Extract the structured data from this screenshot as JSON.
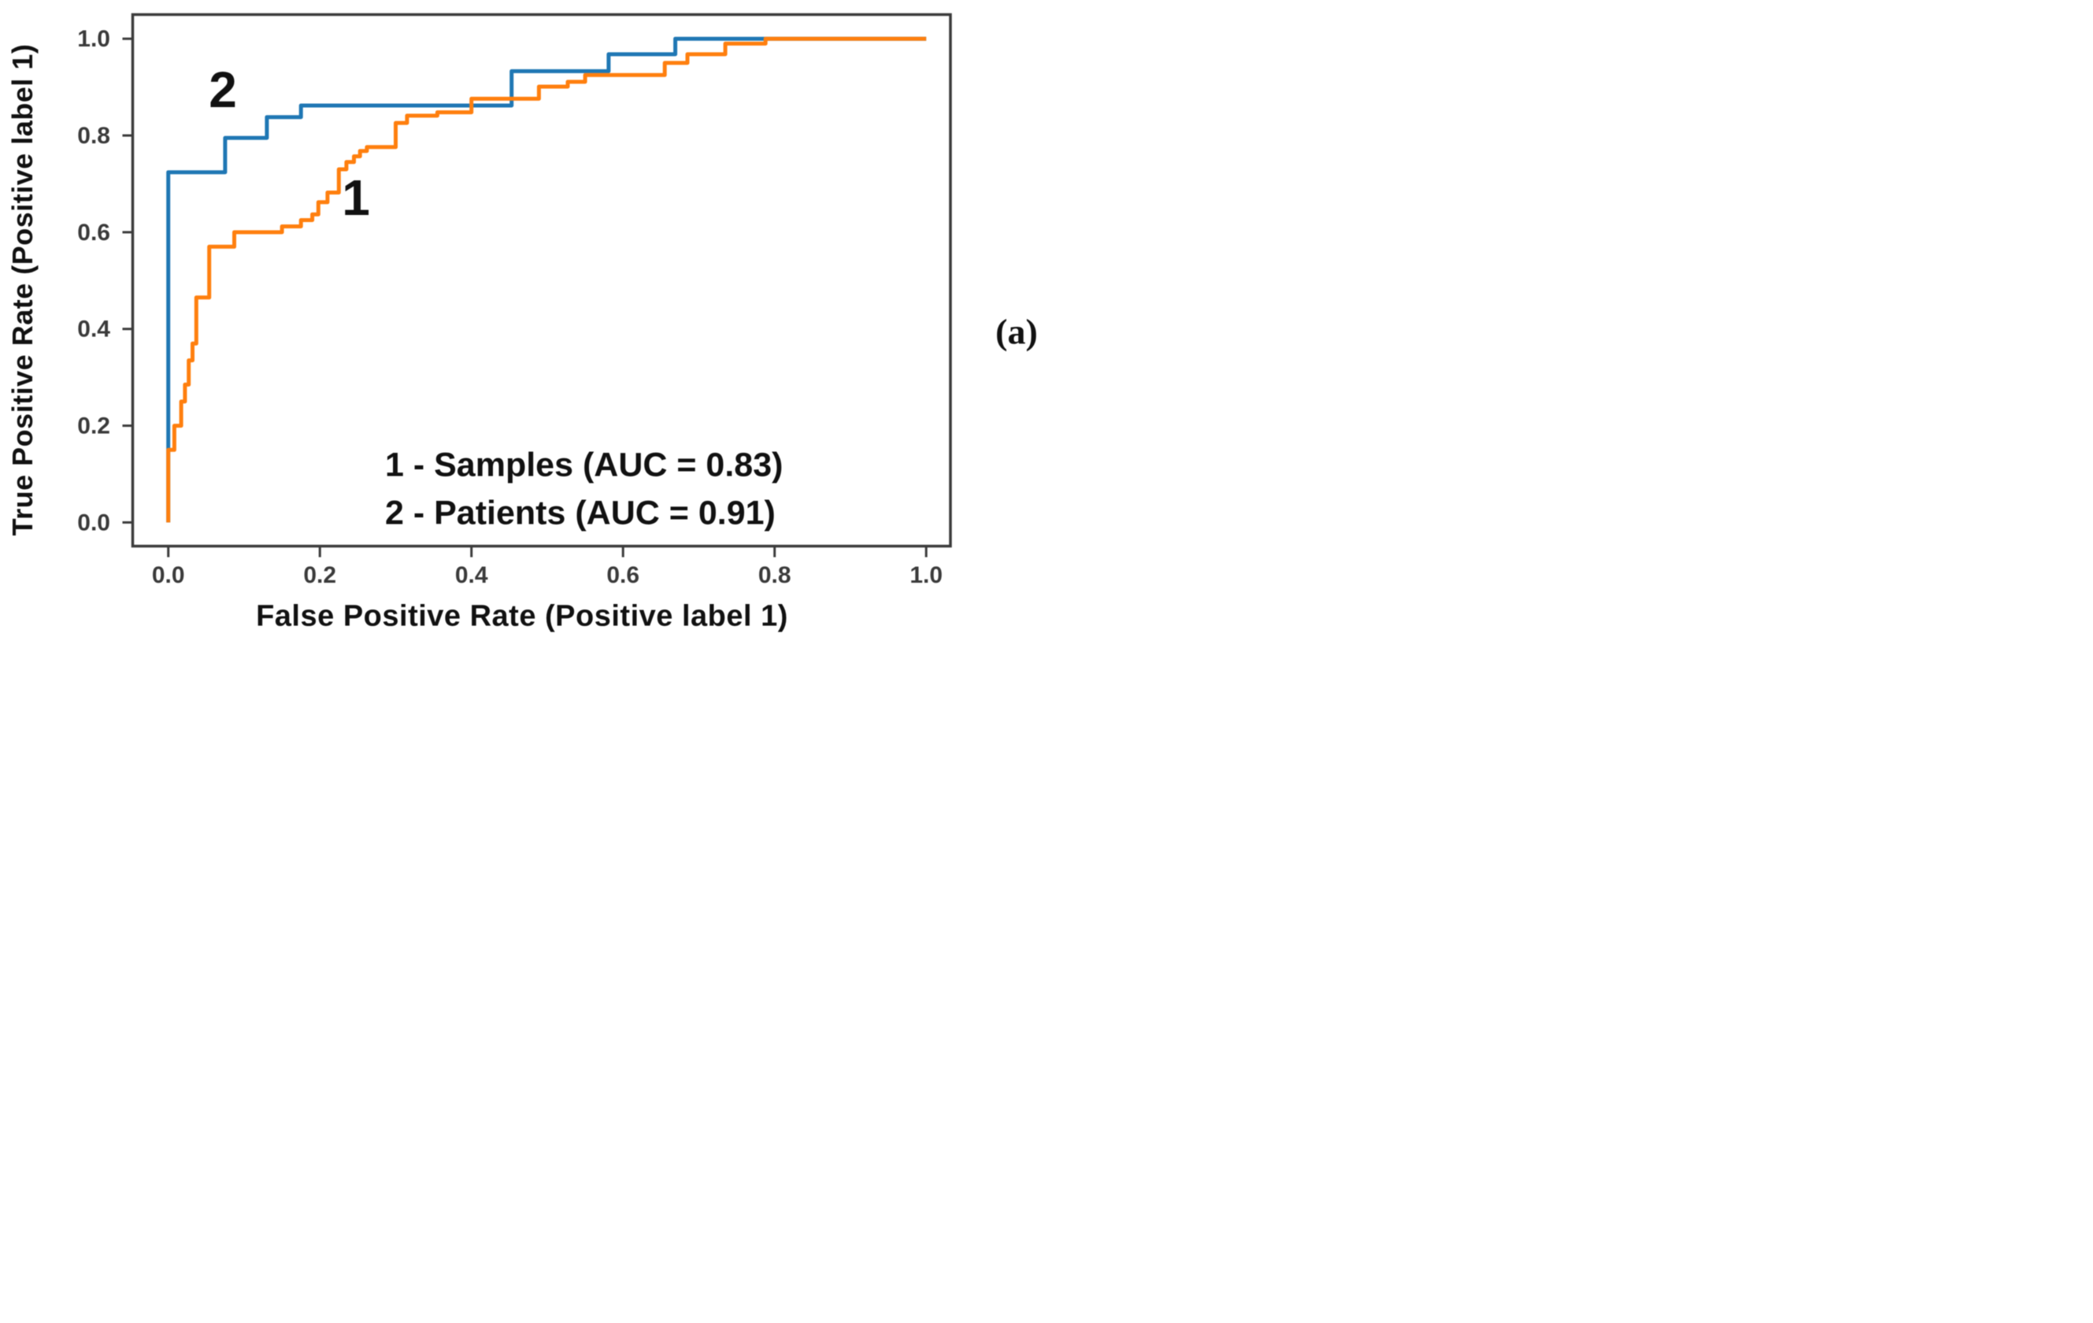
{
  "figure": {
    "panel_label": "(a)",
    "curve_label_1": "1",
    "curve_label_2": "2",
    "legend_line_1": "1 - Samples (AUC = 0.83)",
    "legend_line_2": "2 - Patients (AUC = 0.91)"
  },
  "chart_data": {
    "type": "line",
    "subtype": "roc-step-curves",
    "title": "",
    "xlabel": "False Positive Rate (Positive label 1)",
    "ylabel": "True Positive Rate (Positive label 1)",
    "xlim": [
      -0.047,
      1.032
    ],
    "ylim": [
      -0.049,
      1.05
    ],
    "grid": false,
    "legend_position": "lower-right-text-annotation",
    "x_ticks": {
      "values": [
        0.0,
        0.2,
        0.4,
        0.6,
        0.8,
        1.0
      ],
      "labels": [
        "0.0",
        "0.2",
        "0.4",
        "0.6",
        "0.8",
        "1.0"
      ]
    },
    "y_ticks": {
      "values": [
        0.0,
        0.2,
        0.4,
        0.6,
        0.8,
        1.0
      ],
      "labels": [
        "0.0",
        "0.2",
        "0.4",
        "0.6",
        "0.8",
        "1.0"
      ]
    },
    "axis_color": "#3b3b3b",
    "series": [
      {
        "name": "Samples",
        "curve_label": "1",
        "auc": 0.83,
        "color": "#ff7f0e",
        "step_points": [
          [
            0,
            0
          ],
          [
            0,
            0.15
          ],
          [
            0.008,
            0.15
          ],
          [
            0.008,
            0.2
          ],
          [
            0.017,
            0.2
          ],
          [
            0.017,
            0.25
          ],
          [
            0.022,
            0.25
          ],
          [
            0.022,
            0.285
          ],
          [
            0.027,
            0.285
          ],
          [
            0.027,
            0.335
          ],
          [
            0.032,
            0.335
          ],
          [
            0.032,
            0.37
          ],
          [
            0.037,
            0.37
          ],
          [
            0.037,
            0.465
          ],
          [
            0.054,
            0.465
          ],
          [
            0.054,
            0.57
          ],
          [
            0.087,
            0.57
          ],
          [
            0.087,
            0.6
          ],
          [
            0.15,
            0.6
          ],
          [
            0.15,
            0.612
          ],
          [
            0.175,
            0.612
          ],
          [
            0.175,
            0.625
          ],
          [
            0.19,
            0.625
          ],
          [
            0.19,
            0.637
          ],
          [
            0.198,
            0.637
          ],
          [
            0.198,
            0.662
          ],
          [
            0.21,
            0.662
          ],
          [
            0.21,
            0.682
          ],
          [
            0.225,
            0.682
          ],
          [
            0.225,
            0.73
          ],
          [
            0.235,
            0.73
          ],
          [
            0.235,
            0.745
          ],
          [
            0.245,
            0.745
          ],
          [
            0.245,
            0.757
          ],
          [
            0.253,
            0.757
          ],
          [
            0.253,
            0.768
          ],
          [
            0.262,
            0.768
          ],
          [
            0.262,
            0.776
          ],
          [
            0.3,
            0.776
          ],
          [
            0.3,
            0.826
          ],
          [
            0.315,
            0.826
          ],
          [
            0.315,
            0.841
          ],
          [
            0.355,
            0.841
          ],
          [
            0.355,
            0.848
          ],
          [
            0.4,
            0.848
          ],
          [
            0.4,
            0.876
          ],
          [
            0.489,
            0.876
          ],
          [
            0.489,
            0.901
          ],
          [
            0.527,
            0.901
          ],
          [
            0.527,
            0.911
          ],
          [
            0.55,
            0.911
          ],
          [
            0.55,
            0.925
          ],
          [
            0.655,
            0.925
          ],
          [
            0.655,
            0.95
          ],
          [
            0.685,
            0.95
          ],
          [
            0.685,
            0.968
          ],
          [
            0.735,
            0.968
          ],
          [
            0.735,
            0.99
          ],
          [
            0.788,
            0.99
          ],
          [
            0.788,
            1.0
          ],
          [
            1.0,
            1.0
          ]
        ]
      },
      {
        "name": "Patients",
        "curve_label": "2",
        "auc": 0.91,
        "color": "#1f77b4",
        "step_points": [
          [
            0,
            0
          ],
          [
            0,
            0.724
          ],
          [
            0.075,
            0.724
          ],
          [
            0.075,
            0.795
          ],
          [
            0.13,
            0.795
          ],
          [
            0.13,
            0.838
          ],
          [
            0.175,
            0.838
          ],
          [
            0.175,
            0.862
          ],
          [
            0.453,
            0.862
          ],
          [
            0.453,
            0.933
          ],
          [
            0.581,
            0.933
          ],
          [
            0.581,
            0.968
          ],
          [
            0.669,
            0.968
          ],
          [
            0.669,
            1.0
          ],
          [
            1.0,
            1.0
          ]
        ]
      }
    ]
  }
}
